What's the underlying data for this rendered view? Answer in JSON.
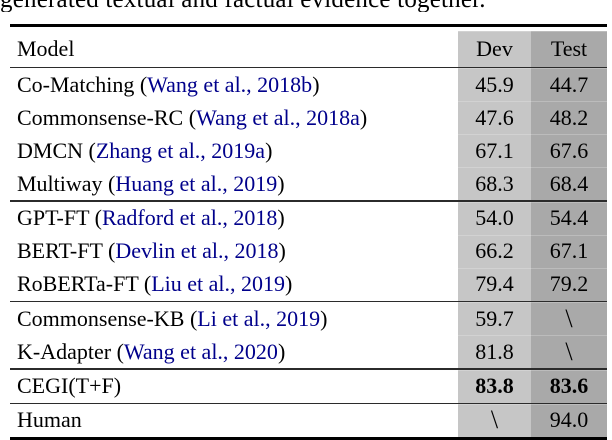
{
  "caption_clipped": "generated textual and factual evidence together.",
  "table": {
    "headers": {
      "model": "Model",
      "dev": "Dev",
      "test": "Test"
    },
    "rows": [
      {
        "prefix": "Co-Matching (",
        "citation": "Wang et al., 2018b",
        "suffix": ")",
        "dev": "45.9",
        "test": "44.7"
      },
      {
        "prefix": "Commonsense-RC (",
        "citation": "Wang et al., 2018a",
        "suffix": ")",
        "dev": "47.6",
        "test": "48.2"
      },
      {
        "prefix": "DMCN (",
        "citation": "Zhang et al., 2019a",
        "suffix": ")",
        "dev": "67.1",
        "test": "67.6"
      },
      {
        "prefix": "Multiway (",
        "citation": "Huang et al., 2019",
        "suffix": ")",
        "dev": "68.3",
        "test": "68.4"
      },
      {
        "prefix": "GPT-FT (",
        "citation": "Radford et al., 2018",
        "suffix": ")",
        "dev": "54.0",
        "test": "54.4"
      },
      {
        "prefix": "BERT-FT (",
        "citation": "Devlin et al., 2018",
        "suffix": ")",
        "dev": "66.2",
        "test": "67.1"
      },
      {
        "prefix": "RoBERTa-FT (",
        "citation": "Liu et al., 2019",
        "suffix": ")",
        "dev": "79.4",
        "test": "79.2"
      },
      {
        "prefix": "Commonsense-KB (",
        "citation": "Li et al., 2019",
        "suffix": ")",
        "dev": "59.7",
        "test": "\\"
      },
      {
        "prefix": "K-Adapter (",
        "citation": "Wang et al., 2020",
        "suffix": ")",
        "dev": "81.8",
        "test": "\\"
      },
      {
        "prefix": "CEGI(T+F)",
        "citation": "",
        "suffix": "",
        "dev": "83.8",
        "test": "83.6"
      },
      {
        "prefix": "Human",
        "citation": "",
        "suffix": "",
        "dev": "\\",
        "test": "94.0"
      }
    ],
    "colors": {
      "dev_column_bg": "#c6c6c6",
      "test_column_bg": "#a9a9a9",
      "citation_text": "#00008B",
      "rule": "#000000"
    }
  }
}
